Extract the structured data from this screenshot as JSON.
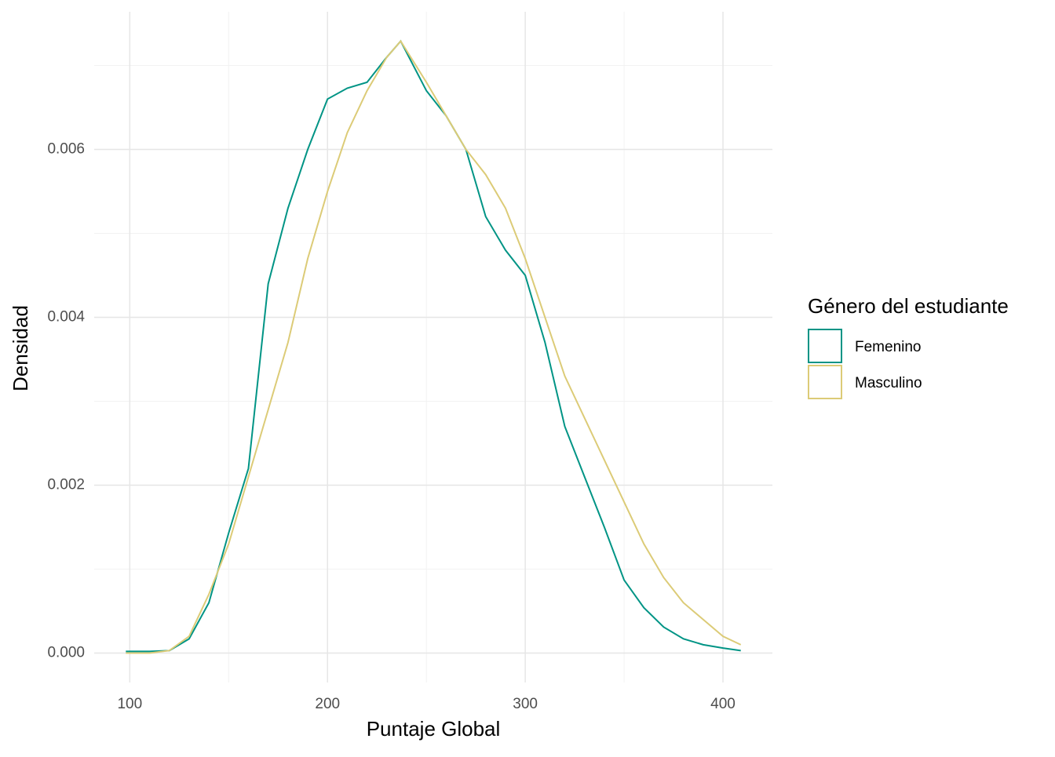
{
  "chart_data": {
    "type": "line",
    "x_label": "Puntaje Global",
    "y_label": "Densidad",
    "legend_title": "Género del estudiante",
    "legend": "right",
    "x": [
      98,
      110,
      120,
      130,
      140,
      150,
      160,
      170,
      180,
      190,
      200,
      210,
      220,
      230,
      237,
      250,
      260,
      270,
      280,
      290,
      300,
      310,
      320,
      330,
      340,
      350,
      360,
      370,
      380,
      390,
      400,
      409
    ],
    "series": [
      {
        "name": "Femenino",
        "color": "#009485",
        "values": [
          2e-05,
          2e-05,
          3e-05,
          0.00017,
          0.0006,
          0.00143,
          0.0022,
          0.0044,
          0.0053,
          0.006,
          0.0066,
          0.00673,
          0.0068,
          0.0071,
          0.00729,
          0.0067,
          0.0064,
          0.006,
          0.0052,
          0.0048,
          0.0045,
          0.0037,
          0.0027,
          0.0021,
          0.0015,
          0.00087,
          0.00054,
          0.00031,
          0.00017,
          0.0001,
          6e-05,
          3e-05
        ]
      },
      {
        "name": "Masculino",
        "color": "#dccb77",
        "values": [
          0,
          0,
          3e-05,
          0.0002,
          0.0007,
          0.0013,
          0.0021,
          0.0029,
          0.0037,
          0.0047,
          0.0055,
          0.0062,
          0.0067,
          0.0071,
          0.00729,
          0.0068,
          0.0064,
          0.006,
          0.0057,
          0.0053,
          0.0047,
          0.004,
          0.0033,
          0.0028,
          0.0023,
          0.0018,
          0.0013,
          0.0009,
          0.0006,
          0.0004,
          0.0002,
          0.0001
        ]
      }
    ],
    "xlim": [
      82,
      425
    ],
    "ylim": [
      -0.00035,
      0.00764
    ],
    "xticks": [
      100,
      200,
      300,
      400
    ],
    "yticks": [
      {
        "value": 0,
        "label": "0.000"
      },
      {
        "value": 0.002,
        "label": "0.002"
      },
      {
        "value": 0.004,
        "label": "0.004"
      },
      {
        "value": 0.006,
        "label": "0.006"
      }
    ],
    "minor_xticks": [
      150,
      250,
      350
    ],
    "minor_yticks": [
      0.001,
      0.003,
      0.005,
      0.007
    ],
    "grid": true
  }
}
